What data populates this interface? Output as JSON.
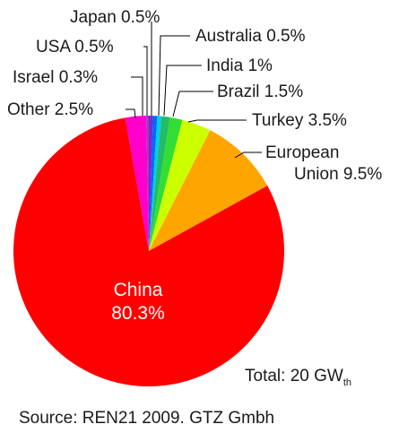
{
  "chart_data": {
    "type": "pie",
    "title": "",
    "categories": [
      "China",
      "European Union",
      "Turkey",
      "Brazil",
      "India",
      "Australia",
      "Japan",
      "USA",
      "Israel",
      "Other"
    ],
    "values": [
      80.3,
      9.5,
      3.5,
      1.5,
      1,
      0.5,
      0.5,
      0.5,
      0.3,
      2.5
    ],
    "colors": [
      "#ff0000",
      "#ffa500",
      "#ccff00",
      "#33dd33",
      "#22bb66",
      "#00ccee",
      "#0066ff",
      "#6633cc",
      "#aa33cc",
      "#ff00cc"
    ],
    "labels": {
      "china": "China",
      "china_value": "80.3%",
      "eu_line1": "European",
      "eu_line2": "Union 9.5%",
      "turkey": "Turkey 3.5%",
      "brazil": "Brazil 1.5%",
      "india": "India 1%",
      "australia": "Australia 0.5%",
      "japan": "Japan 0.5%",
      "usa": "USA  0.5%",
      "israel": "Israel  0.3%",
      "other": "Other  2.5%"
    },
    "total_prefix": "Total: 20 GW",
    "total_subscript": "th",
    "source": "Source: REN21 2009. GTZ Gmbh"
  }
}
